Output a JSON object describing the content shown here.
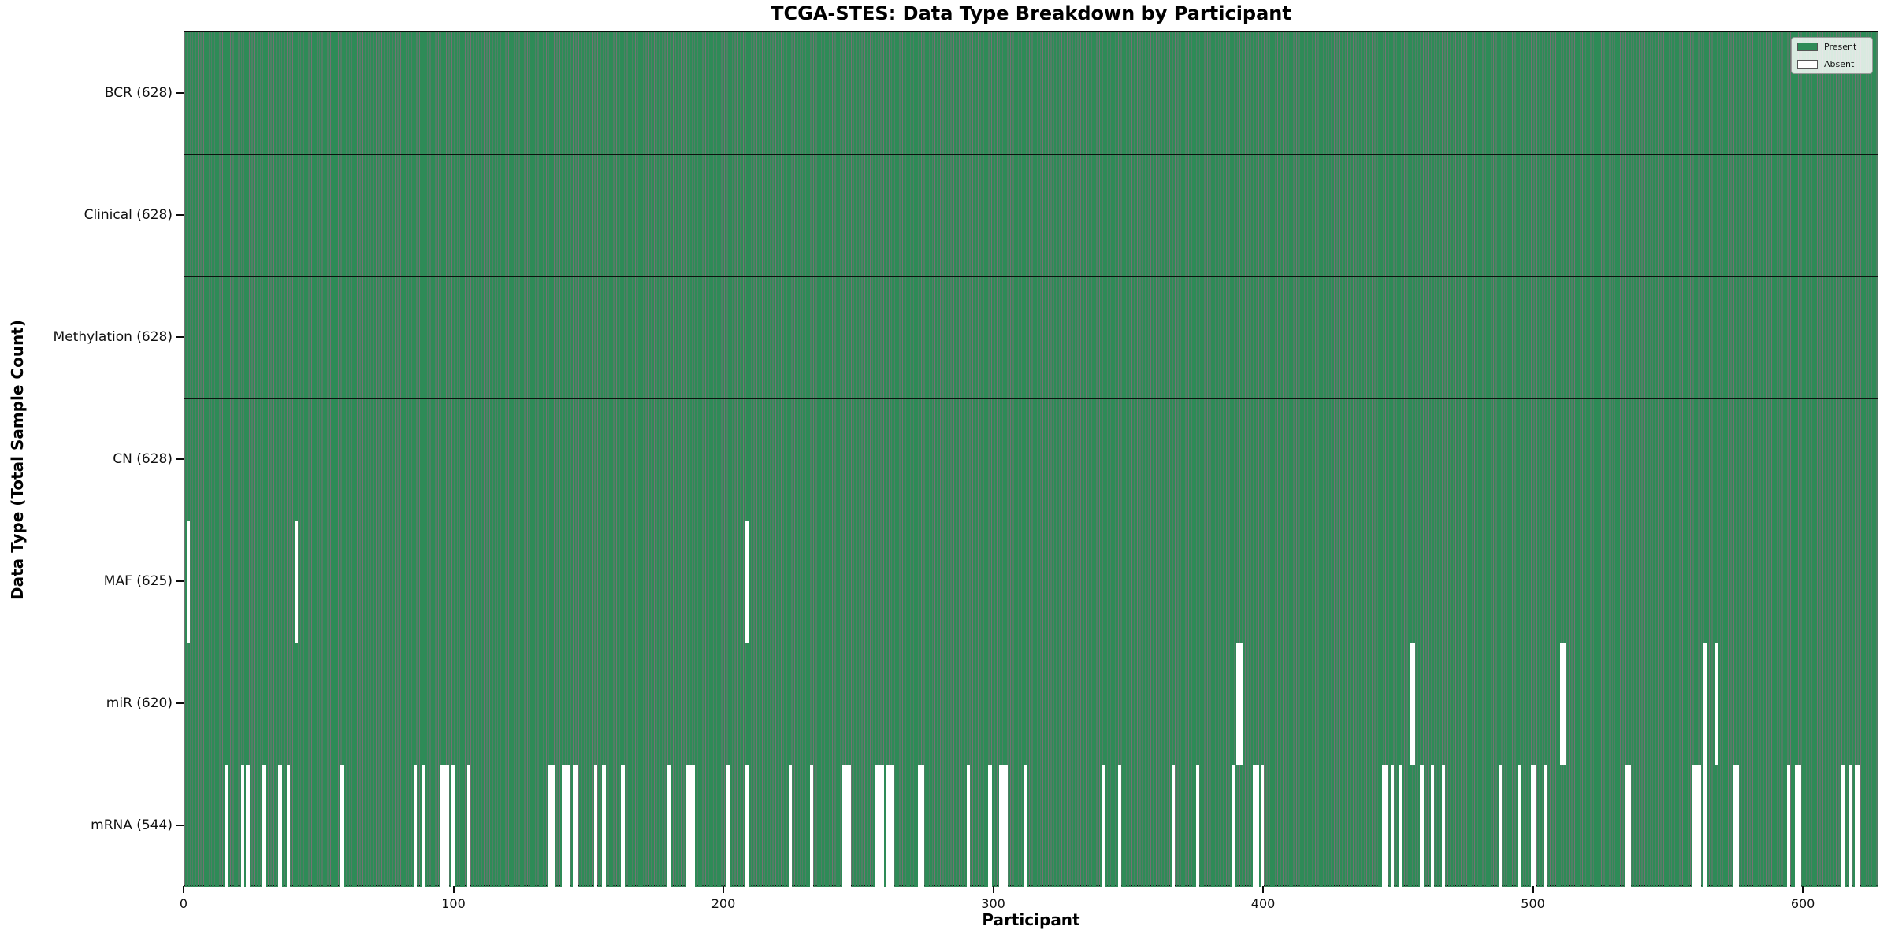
{
  "title": "TCGA-STES: Data Type Breakdown by Participant",
  "x_axis": {
    "label": "Participant",
    "ticks": [
      0,
      100,
      200,
      300,
      400,
      500,
      600
    ]
  },
  "y_axis": {
    "label": "Data Type (Total Sample Count)"
  },
  "legend": {
    "present_label": "Present",
    "absent_label": "Absent"
  },
  "colors": {
    "present_fill": "#2E8B57",
    "bar_edge": "rgba(0,0,0,0.55)",
    "absent_fill": "#ffffff",
    "separator": "#000000"
  },
  "chart_data": {
    "type": "heatmap",
    "subtype": "presence-absence-matrix",
    "n_participants": 628,
    "x_range": [
      0,
      628
    ],
    "grid": false,
    "legend_position": "upper right",
    "rows": [
      {
        "label": "BCR (628)",
        "name": "BCR",
        "present_count": 628,
        "absent_participants": []
      },
      {
        "label": "Clinical (628)",
        "name": "Clinical",
        "present_count": 628,
        "absent_participants": []
      },
      {
        "label": "Methylation (628)",
        "name": "Methylation",
        "present_count": 628,
        "absent_participants": []
      },
      {
        "label": "CN (628)",
        "name": "CN",
        "present_count": 628,
        "absent_participants": []
      },
      {
        "label": "MAF (625)",
        "name": "MAF",
        "present_count": 625,
        "absent_participants": [
          1,
          41,
          208
        ]
      },
      {
        "label": "miR (620)",
        "name": "miR",
        "present_count": 620,
        "absent_participants": [
          390,
          391,
          454,
          455,
          510,
          511,
          563,
          567
        ]
      },
      {
        "label": "mRNA (544)",
        "name": "mRNA",
        "present_count": 544,
        "absent_participants": [
          15,
          21,
          23,
          29,
          35,
          38,
          58,
          85,
          88,
          95,
          96,
          97,
          99,
          105,
          135,
          136,
          140,
          141,
          142,
          144,
          145,
          152,
          155,
          162,
          179,
          186,
          187,
          188,
          201,
          208,
          224,
          232,
          244,
          245,
          246,
          256,
          257,
          258,
          260,
          261,
          262,
          272,
          273,
          290,
          298,
          302,
          303,
          304,
          311,
          340,
          346,
          366,
          375,
          388,
          396,
          397,
          399,
          444,
          445,
          447,
          450,
          458,
          462,
          466,
          487,
          494,
          499,
          500,
          504,
          534,
          535,
          559,
          560,
          561,
          563,
          574,
          575,
          594,
          597,
          598,
          614,
          617,
          619,
          620
        ]
      }
    ]
  }
}
